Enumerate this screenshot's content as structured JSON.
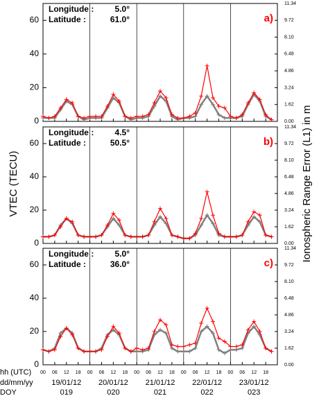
{
  "y_label": "VTEC (TECU)",
  "y2_label": "Ionospheric Range Error (L1) in m",
  "x_axis_rows": {
    "labels": [
      "hh (UTC)",
      "dd/mm/yy",
      "DOY"
    ],
    "dates": [
      "19/01/12",
      "20/01/12",
      "21/01/12",
      "22/01/12",
      "23/01/12"
    ],
    "doy": [
      "019",
      "020",
      "021",
      "022",
      "023"
    ]
  },
  "chart_data": [
    {
      "type": "line",
      "panel_label": "a)",
      "longitude_label": "Longitude :",
      "longitude": "5.0°",
      "latitude_label": "Latitude :",
      "latitude": "61.0°",
      "x": [
        0,
        3,
        6,
        9,
        12,
        15,
        18,
        21,
        24,
        27,
        30,
        33,
        36,
        39,
        42,
        45,
        48,
        51,
        54,
        57,
        60,
        63,
        66,
        69,
        72,
        75,
        78,
        81,
        84,
        87,
        90,
        93,
        96,
        99,
        102,
        105,
        108,
        111,
        114,
        117
      ],
      "xlim": [
        0,
        120
      ],
      "ylim": [
        0,
        70
      ],
      "yticks": [
        0,
        20,
        40,
        60
      ],
      "y2lim": [
        0,
        11.34
      ],
      "y2ticks": [
        {
          "value": 0,
          "label": "0.00"
        },
        1.62,
        3.24,
        4.86,
        6.48,
        {
          "value": 8.1,
          "label": "8.10"
        },
        9.72,
        11.34
      ],
      "series": [
        {
          "color": "#808080",
          "values": [
            2,
            2,
            2,
            7,
            12,
            10,
            3,
            1,
            2,
            2,
            2,
            8,
            14,
            11,
            3,
            1,
            2,
            2,
            3,
            9,
            15,
            12,
            3,
            1,
            2,
            2,
            3,
            10,
            15,
            10,
            4,
            2,
            2,
            2,
            3,
            10,
            16,
            12,
            3,
            1
          ]
        },
        {
          "color": "#ff0000",
          "values": [
            3,
            2,
            3,
            8,
            13,
            11,
            3,
            2,
            3,
            3,
            3,
            9,
            16,
            12,
            3,
            2,
            3,
            3,
            4,
            11,
            18,
            14,
            4,
            2,
            2,
            3,
            5,
            15,
            33,
            14,
            9,
            8,
            3,
            2,
            4,
            11,
            17,
            13,
            4,
            1
          ]
        }
      ]
    },
    {
      "type": "line",
      "panel_label": "b)",
      "longitude_label": "Longitude :",
      "longitude": "4.5°",
      "latitude_label": "Latitude :",
      "latitude": "50.5°",
      "x": [
        0,
        3,
        6,
        9,
        12,
        15,
        18,
        21,
        24,
        27,
        30,
        33,
        36,
        39,
        42,
        45,
        48,
        51,
        54,
        57,
        60,
        63,
        66,
        69,
        72,
        75,
        78,
        81,
        84,
        87,
        90,
        93,
        96,
        99,
        102,
        105,
        108,
        111,
        114,
        117
      ],
      "xlim": [
        0,
        120
      ],
      "ylim": [
        0,
        70
      ],
      "yticks": [
        0,
        20,
        40,
        60
      ],
      "y2lim": [
        0,
        11.34
      ],
      "y2ticks": [
        {
          "value": 0,
          "label": "0.00"
        },
        1.62,
        3.24,
        4.86,
        6.48,
        {
          "value": 8.1,
          "label": "8.10"
        },
        9.72,
        11.34
      ],
      "series": [
        {
          "color": "#808080",
          "values": [
            4,
            4,
            5,
            11,
            15,
            12,
            5,
            4,
            4,
            4,
            5,
            10,
            15,
            11,
            5,
            4,
            4,
            4,
            5,
            11,
            16,
            12,
            5,
            4,
            3,
            3,
            5,
            11,
            17,
            12,
            5,
            4,
            4,
            4,
            5,
            11,
            16,
            13,
            5,
            4
          ]
        },
        {
          "color": "#ff0000",
          "values": [
            4,
            4,
            5,
            10,
            15,
            13,
            5,
            4,
            4,
            4,
            5,
            11,
            18,
            14,
            5,
            4,
            4,
            4,
            5,
            13,
            21,
            15,
            5,
            4,
            3,
            3,
            6,
            15,
            31,
            17,
            6,
            4,
            4,
            4,
            5,
            13,
            19,
            17,
            5,
            4
          ]
        }
      ]
    },
    {
      "type": "line",
      "panel_label": "c)",
      "longitude_label": "Longitude :",
      "longitude": "5.0°",
      "latitude_label": "Latitude :",
      "latitude": "36.0°",
      "x": [
        0,
        3,
        6,
        9,
        12,
        15,
        18,
        21,
        24,
        27,
        30,
        33,
        36,
        39,
        42,
        45,
        48,
        51,
        54,
        57,
        60,
        63,
        66,
        69,
        72,
        75,
        78,
        81,
        84,
        87,
        90,
        93,
        96,
        99,
        102,
        105,
        108,
        111,
        114,
        117
      ],
      "xlim": [
        0,
        120
      ],
      "ylim": [
        0,
        70
      ],
      "yticks": [
        0,
        20,
        40,
        60
      ],
      "xticks": [
        {
          "value": 0,
          "label": "00"
        },
        {
          "value": 6,
          "label": "06"
        },
        12,
        18,
        {
          "value": 24,
          "label": "00"
        },
        {
          "value": 30,
          "label": "06"
        },
        {
          "value": 36,
          "label": "12"
        },
        {
          "value": 42,
          "label": "18"
        },
        {
          "value": 48,
          "label": "00"
        },
        {
          "value": 54,
          "label": "06"
        },
        {
          "value": 60,
          "label": "12"
        },
        {
          "value": 66,
          "label": "18"
        },
        {
          "value": 72,
          "label": "00"
        },
        {
          "value": 78,
          "label": "06"
        },
        {
          "value": 84,
          "label": "12"
        },
        {
          "value": 90,
          "label": "18"
        },
        {
          "value": 96,
          "label": "00"
        },
        {
          "value": 102,
          "label": "06"
        },
        {
          "value": 108,
          "label": "12"
        },
        {
          "value": 114,
          "label": "18"
        }
      ],
      "y2lim": [
        0,
        11.34
      ],
      "y2ticks": [
        {
          "value": 0,
          "label": "0.00"
        },
        1.62,
        3.24,
        4.86,
        6.48,
        {
          "value": 8.1,
          "label": "8.10"
        },
        9.72,
        11.34
      ],
      "series": [
        {
          "color": "#808080",
          "values": [
            9,
            8,
            10,
            19,
            22,
            19,
            10,
            8,
            8,
            8,
            10,
            18,
            21,
            18,
            10,
            8,
            8,
            8,
            9,
            18,
            21,
            19,
            10,
            8,
            8,
            8,
            10,
            20,
            23,
            19,
            9,
            7,
            9,
            9,
            10,
            19,
            23,
            18,
            10,
            8
          ]
        },
        {
          "color": "#ff0000",
          "values": [
            9,
            8,
            9,
            17,
            22,
            18,
            10,
            8,
            8,
            8,
            9,
            17,
            23,
            19,
            10,
            8,
            10,
            9,
            10,
            20,
            27,
            24,
            12,
            11,
            11,
            12,
            13,
            25,
            34,
            26,
            16,
            14,
            11,
            11,
            12,
            21,
            26,
            20,
            10,
            8
          ]
        }
      ]
    }
  ]
}
